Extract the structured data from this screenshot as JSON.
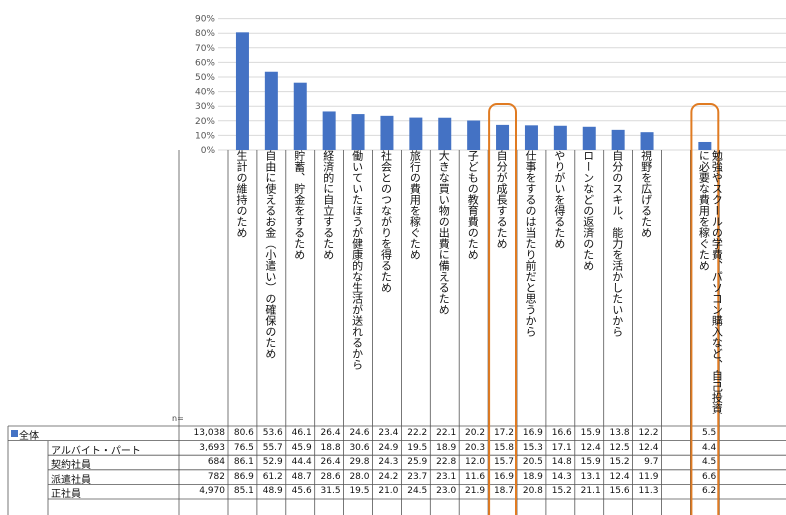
{
  "chart_data": {
    "type": "bar",
    "ylim": [
      0,
      90
    ],
    "yticks": [
      "0%",
      "10%",
      "20%",
      "30%",
      "40%",
      "50%",
      "60%",
      "70%",
      "80%",
      "90%"
    ],
    "bar_color": "#4472c4",
    "highlight_color": "#e07b22",
    "highlighted_categories": [
      9,
      16
    ],
    "categories": [
      "生計の維持のため",
      "自由に使えるお金（小遣い）の確保のため",
      "貯蓄、貯金をするため",
      "経済的に自立するため",
      "働いていたほうが健康的な生活が送れるから",
      "社会とのつながりを得るため",
      "旅行の費用を稼ぐため",
      "大きな買い物の出費に備えるため",
      "子どもの教育費のため",
      "自分が成長するため",
      "仕事をするのは当たり前だと思うから",
      "やりがいを得るため",
      "ローンなどの返済のため",
      "自分のスキル、能力を活かしたいから",
      "視野を広げるため",
      "",
      "勉強やスクールの学費、パソコン購入など、自己投資に必要な費用を稼ぐため"
    ],
    "values": [
      80.6,
      53.6,
      46.1,
      26.4,
      24.6,
      23.4,
      22.2,
      22.1,
      20.2,
      17.2,
      16.9,
      16.6,
      15.9,
      13.8,
      12.2,
      null,
      5.5
    ],
    "n_header": "n=",
    "rows": [
      {
        "label": "全体",
        "n": "13,038",
        "values": [
          "80.6",
          "53.6",
          "46.1",
          "26.4",
          "24.6",
          "23.4",
          "22.2",
          "22.1",
          "20.2",
          "17.2",
          "16.9",
          "16.6",
          "15.9",
          "13.8",
          "12.2",
          "",
          "5.5"
        ]
      },
      {
        "label": "アルバイト・パート",
        "n": "3,693",
        "values": [
          "76.5",
          "55.7",
          "45.9",
          "18.8",
          "30.6",
          "24.9",
          "19.5",
          "18.9",
          "20.3",
          "15.8",
          "15.3",
          "17.1",
          "12.4",
          "12.5",
          "12.4",
          "",
          "4.4"
        ]
      },
      {
        "label": "契約社員",
        "n": "684",
        "values": [
          "86.1",
          "52.9",
          "44.4",
          "26.4",
          "29.8",
          "24.3",
          "25.9",
          "22.8",
          "12.0",
          "15.7",
          "20.5",
          "14.8",
          "15.9",
          "15.2",
          "9.7",
          "",
          "4.5"
        ]
      },
      {
        "label": "派遣社員",
        "n": "782",
        "values": [
          "86.9",
          "61.2",
          "48.7",
          "28.6",
          "28.0",
          "24.2",
          "23.7",
          "23.1",
          "11.6",
          "16.9",
          "18.9",
          "14.3",
          "13.1",
          "12.4",
          "11.9",
          "",
          "6.6"
        ]
      },
      {
        "label": "正社員",
        "n": "4,970",
        "values": [
          "85.1",
          "48.9",
          "45.6",
          "31.5",
          "19.5",
          "21.0",
          "24.5",
          "23.0",
          "21.9",
          "18.7",
          "20.8",
          "15.2",
          "21.1",
          "15.6",
          "11.3",
          "",
          "6.2"
        ]
      }
    ]
  }
}
